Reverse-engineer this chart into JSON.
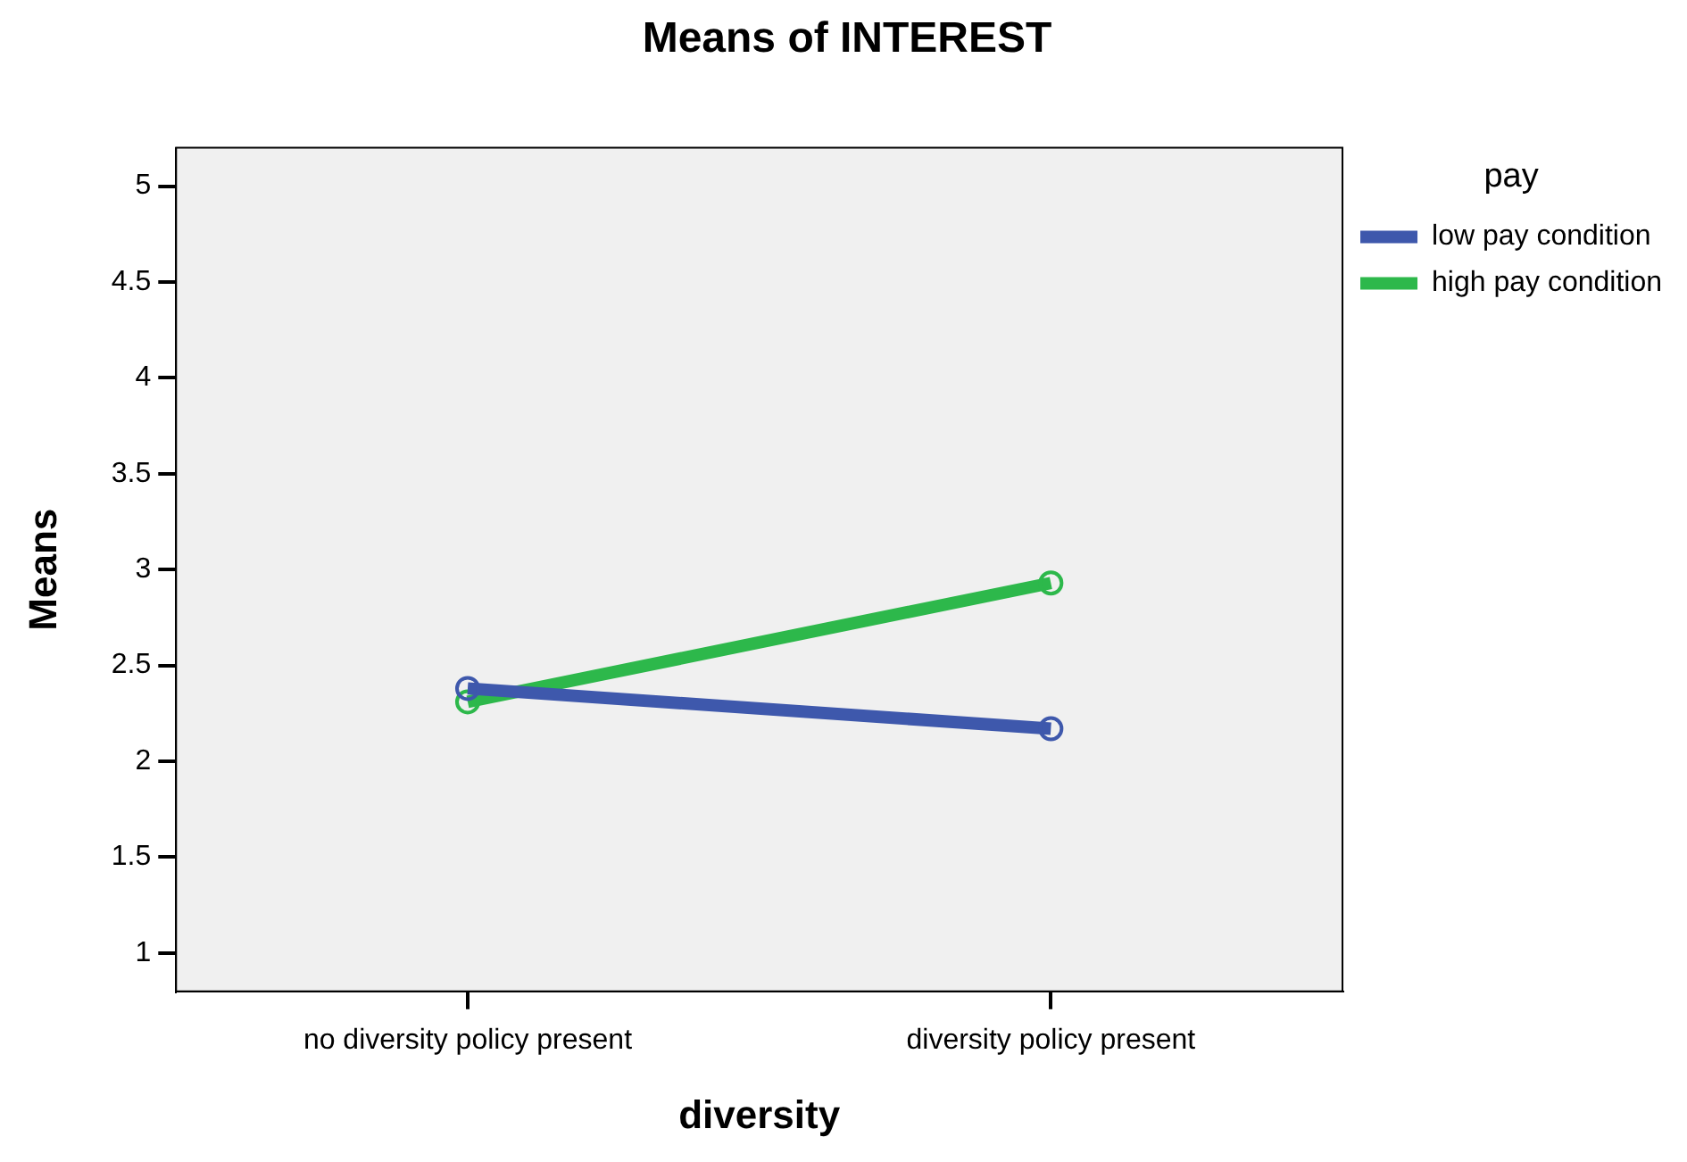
{
  "chart_data": {
    "type": "line",
    "title": "Means of INTEREST",
    "xlabel": "diversity",
    "ylabel": "Means",
    "legend_title": "pay",
    "categories": [
      "no diversity policy present",
      "diversity policy present"
    ],
    "series": [
      {
        "name": "low pay condition",
        "color": "#3e58ac",
        "values": [
          2.38,
          2.17
        ]
      },
      {
        "name": "high pay condition",
        "color": "#2db84b",
        "values": [
          2.31,
          2.93
        ]
      }
    ],
    "ylim": [
      0.8,
      5.2
    ],
    "yticks": [
      1,
      1.5,
      2,
      2.5,
      3,
      3.5,
      4,
      4.5,
      5
    ],
    "legend": "right",
    "marker": "circle",
    "line_style": "solid"
  }
}
